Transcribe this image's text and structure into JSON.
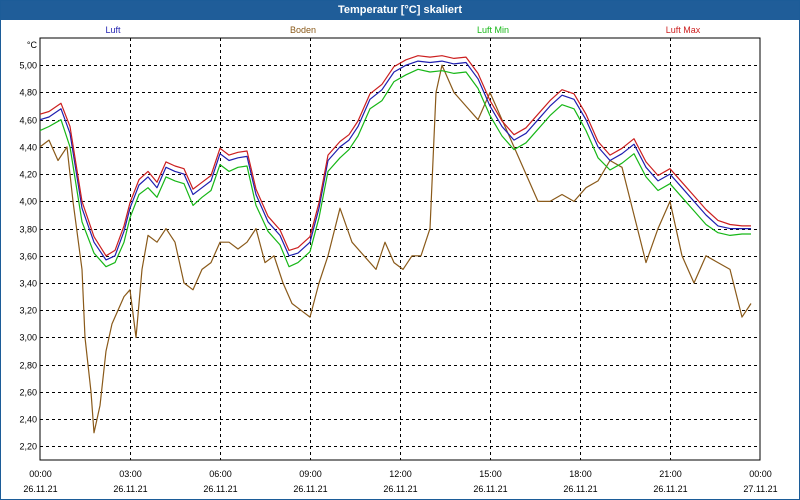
{
  "window": {
    "title": "Temperatur [°C] skaliert"
  },
  "chart_data": {
    "type": "line",
    "title": "Temperatur [°C] skaliert",
    "ylabel": "°C",
    "xlabel": "",
    "ylim": [
      2.1,
      5.2
    ],
    "yticks": [
      "2,20",
      "2,40",
      "2,60",
      "2,80",
      "3,00",
      "3,20",
      "3,40",
      "3,60",
      "3,80",
      "4,00",
      "4,20",
      "4,40",
      "4,60",
      "4,80",
      "5,00"
    ],
    "ytick_values": [
      2.2,
      2.4,
      2.6,
      2.8,
      3.0,
      3.2,
      3.4,
      3.6,
      3.8,
      4.0,
      4.2,
      4.4,
      4.6,
      4.8,
      5.0
    ],
    "xlim": [
      0,
      24
    ],
    "xticks": [
      {
        "time": "00:00",
        "date": "26.11.21"
      },
      {
        "time": "03:00",
        "date": "26.11.21"
      },
      {
        "time": "06:00",
        "date": "26.11.21"
      },
      {
        "time": "09:00",
        "date": "26.11.21"
      },
      {
        "time": "12:00",
        "date": "26.11.21"
      },
      {
        "time": "15:00",
        "date": "26.11.21"
      },
      {
        "time": "18:00",
        "date": "26.11.21"
      },
      {
        "time": "21:00",
        "date": "26.11.21"
      },
      {
        "time": "00:00",
        "date": "27.11.21"
      }
    ],
    "grid": true,
    "legend_position": "top",
    "x_unit": "hours since 26.11.21 00:00",
    "series": [
      {
        "name": "Luft",
        "color": "#1f1fb0",
        "x": [
          0,
          0.3,
          0.7,
          1.0,
          1.4,
          1.8,
          2.2,
          2.5,
          2.8,
          3.0,
          3.3,
          3.6,
          3.9,
          4.2,
          4.5,
          4.8,
          5.1,
          5.4,
          5.7,
          6.0,
          6.3,
          6.6,
          6.9,
          7.2,
          7.6,
          8.0,
          8.3,
          8.6,
          9.0,
          9.3,
          9.6,
          10.0,
          10.3,
          10.6,
          11.0,
          11.4,
          11.8,
          12.2,
          12.6,
          13.0,
          13.4,
          13.8,
          14.2,
          14.6,
          15.0,
          15.4,
          15.8,
          16.2,
          16.6,
          17.0,
          17.4,
          17.8,
          18.2,
          18.6,
          19.0,
          19.4,
          19.8,
          20.2,
          20.6,
          21.0,
          21.4,
          21.8,
          22.2,
          22.6,
          23.0,
          23.4,
          23.7
        ],
        "y": [
          4.6,
          4.62,
          4.68,
          4.5,
          3.95,
          3.7,
          3.57,
          3.6,
          3.78,
          3.95,
          4.12,
          4.18,
          4.1,
          4.25,
          4.22,
          4.2,
          4.05,
          4.1,
          4.15,
          4.35,
          4.3,
          4.32,
          4.33,
          4.05,
          3.85,
          3.75,
          3.6,
          3.62,
          3.7,
          3.95,
          4.3,
          4.4,
          4.45,
          4.55,
          4.75,
          4.82,
          4.95,
          5.0,
          5.03,
          5.02,
          5.03,
          5.01,
          5.02,
          4.9,
          4.7,
          4.55,
          4.45,
          4.5,
          4.6,
          4.7,
          4.78,
          4.75,
          4.6,
          4.4,
          4.3,
          4.35,
          4.42,
          4.25,
          4.15,
          4.2,
          4.1,
          4.0,
          3.9,
          3.82,
          3.8,
          3.8,
          3.8
        ]
      },
      {
        "name": "Boden",
        "color": "#8a5a1a",
        "x": [
          0,
          0.3,
          0.6,
          0.9,
          1.1,
          1.4,
          1.5,
          1.7,
          1.8,
          1.9,
          2.0,
          2.2,
          2.4,
          2.6,
          2.8,
          3.0,
          3.2,
          3.4,
          3.6,
          3.9,
          4.2,
          4.5,
          4.8,
          5.1,
          5.4,
          5.7,
          6.0,
          6.3,
          6.6,
          6.9,
          7.2,
          7.5,
          7.8,
          8.1,
          8.4,
          8.7,
          9.0,
          9.3,
          9.6,
          10.0,
          10.4,
          10.8,
          11.2,
          11.5,
          11.8,
          12.1,
          12.4,
          12.7,
          13.0,
          13.2,
          13.4,
          13.8,
          14.2,
          14.6,
          15.0,
          15.4,
          15.8,
          16.2,
          16.6,
          17.0,
          17.4,
          17.8,
          18.2,
          18.6,
          19.0,
          19.4,
          19.8,
          20.2,
          20.6,
          21.0,
          21.4,
          21.8,
          22.2,
          22.6,
          23.0,
          23.4,
          23.7
        ],
        "y": [
          4.4,
          4.45,
          4.3,
          4.4,
          4.0,
          3.5,
          3.0,
          2.6,
          2.3,
          2.4,
          2.5,
          2.9,
          3.1,
          3.2,
          3.3,
          3.35,
          3.0,
          3.5,
          3.75,
          3.7,
          3.8,
          3.7,
          3.4,
          3.35,
          3.5,
          3.55,
          3.7,
          3.7,
          3.65,
          3.7,
          3.8,
          3.55,
          3.6,
          3.4,
          3.25,
          3.2,
          3.15,
          3.4,
          3.6,
          3.95,
          3.7,
          3.6,
          3.5,
          3.7,
          3.55,
          3.5,
          3.6,
          3.6,
          3.8,
          4.8,
          5.0,
          4.8,
          4.7,
          4.6,
          4.8,
          4.6,
          4.4,
          4.2,
          4.0,
          4.0,
          4.05,
          4.0,
          4.1,
          4.15,
          4.3,
          4.25,
          3.9,
          3.55,
          3.8,
          4.0,
          3.6,
          3.4,
          3.6,
          3.55,
          3.5,
          3.15,
          3.25
        ]
      },
      {
        "name": "Luft Min",
        "color": "#17b717",
        "x": [
          0,
          0.3,
          0.7,
          1.0,
          1.4,
          1.8,
          2.2,
          2.5,
          2.8,
          3.0,
          3.3,
          3.6,
          3.9,
          4.2,
          4.5,
          4.8,
          5.1,
          5.4,
          5.7,
          6.0,
          6.3,
          6.6,
          6.9,
          7.2,
          7.6,
          8.0,
          8.3,
          8.6,
          9.0,
          9.3,
          9.6,
          10.0,
          10.3,
          10.6,
          11.0,
          11.4,
          11.8,
          12.2,
          12.6,
          13.0,
          13.4,
          13.8,
          14.2,
          14.6,
          15.0,
          15.4,
          15.8,
          16.2,
          16.6,
          17.0,
          17.4,
          17.8,
          18.2,
          18.6,
          19.0,
          19.4,
          19.8,
          20.2,
          20.6,
          21.0,
          21.4,
          21.8,
          22.2,
          22.6,
          23.0,
          23.4,
          23.7
        ],
        "y": [
          4.52,
          4.55,
          4.6,
          4.4,
          3.85,
          3.62,
          3.52,
          3.55,
          3.7,
          3.88,
          4.05,
          4.1,
          4.03,
          4.18,
          4.15,
          4.13,
          3.97,
          4.03,
          4.08,
          4.27,
          4.22,
          4.25,
          4.26,
          3.97,
          3.78,
          3.68,
          3.52,
          3.55,
          3.63,
          3.88,
          4.22,
          4.32,
          4.38,
          4.48,
          4.68,
          4.74,
          4.88,
          4.93,
          4.97,
          4.95,
          4.96,
          4.94,
          4.95,
          4.83,
          4.63,
          4.48,
          4.38,
          4.43,
          4.53,
          4.63,
          4.71,
          4.68,
          4.52,
          4.32,
          4.23,
          4.28,
          4.35,
          4.18,
          4.08,
          4.13,
          4.03,
          3.93,
          3.83,
          3.77,
          3.75,
          3.76,
          3.76
        ]
      },
      {
        "name": "Luft Max",
        "color": "#cc1f1f",
        "x": [
          0,
          0.3,
          0.7,
          1.0,
          1.4,
          1.8,
          2.2,
          2.5,
          2.8,
          3.0,
          3.3,
          3.6,
          3.9,
          4.2,
          4.5,
          4.8,
          5.1,
          5.4,
          5.7,
          6.0,
          6.3,
          6.6,
          6.9,
          7.2,
          7.6,
          8.0,
          8.3,
          8.6,
          9.0,
          9.3,
          9.6,
          10.0,
          10.3,
          10.6,
          11.0,
          11.4,
          11.8,
          12.2,
          12.6,
          13.0,
          13.4,
          13.8,
          14.2,
          14.6,
          15.0,
          15.4,
          15.8,
          16.2,
          16.6,
          17.0,
          17.4,
          17.8,
          18.2,
          18.6,
          19.0,
          19.4,
          19.8,
          20.2,
          20.6,
          21.0,
          21.4,
          21.8,
          22.2,
          22.6,
          23.0,
          23.4,
          23.7
        ],
        "y": [
          4.64,
          4.66,
          4.72,
          4.55,
          4.0,
          3.74,
          3.6,
          3.64,
          3.82,
          3.99,
          4.16,
          4.22,
          4.14,
          4.29,
          4.26,
          4.24,
          4.09,
          4.14,
          4.19,
          4.39,
          4.34,
          4.36,
          4.37,
          4.09,
          3.89,
          3.79,
          3.64,
          3.66,
          3.74,
          3.99,
          4.34,
          4.44,
          4.49,
          4.59,
          4.79,
          4.86,
          4.99,
          5.04,
          5.07,
          5.06,
          5.07,
          5.05,
          5.06,
          4.94,
          4.74,
          4.59,
          4.49,
          4.54,
          4.64,
          4.74,
          4.82,
          4.79,
          4.64,
          4.44,
          4.34,
          4.39,
          4.46,
          4.29,
          4.19,
          4.24,
          4.14,
          4.04,
          3.94,
          3.86,
          3.83,
          3.82,
          3.82
        ]
      }
    ]
  }
}
